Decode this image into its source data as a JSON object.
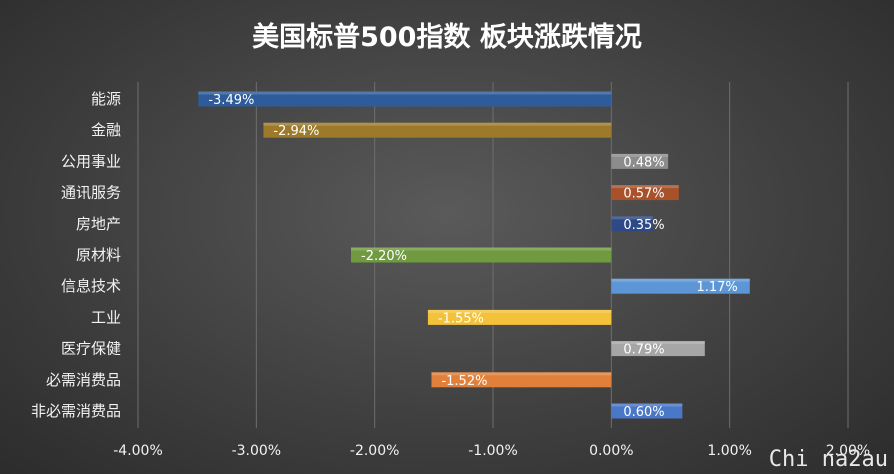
{
  "chart_data": {
    "type": "bar",
    "orientation": "horizontal",
    "title": "美国标普500指数 板块涨跌情况",
    "categories": [
      "能源",
      "金融",
      "公用事业",
      "通讯服务",
      "房地产",
      "原材料",
      "信息技术",
      "工业",
      "医疗保健",
      "必需消费品",
      "非必需消费品"
    ],
    "values": [
      -3.49,
      -2.94,
      0.48,
      0.57,
      0.35,
      -2.2,
      1.17,
      -1.55,
      0.79,
      -1.52,
      0.6
    ],
    "data_labels": [
      "-3.49%",
      "-2.94%",
      "0.48%",
      "0.57%",
      "0.35%",
      "-2.20%",
      "1.17%",
      "-1.55%",
      "0.79%",
      "-1.52%",
      "0.60%"
    ],
    "colors": [
      "#2e5b9a",
      "#9c7a2a",
      "#8c8c8c",
      "#a9522a",
      "#2d4a86",
      "#6f9a3f",
      "#5c96d6",
      "#f3c23a",
      "#a6a6a6",
      "#e0803a",
      "#4a78c8"
    ],
    "xlim": [
      -4.0,
      2.0
    ],
    "xticks": [
      -4,
      -3,
      -2,
      -1,
      0,
      1,
      2
    ],
    "xtick_labels": [
      "-4.00%",
      "-3.00%",
      "-2.00%",
      "-1.00%",
      "0.00%",
      "1.00%",
      "2.00%"
    ],
    "grid": true,
    "xlabel": "",
    "ylabel": ""
  },
  "watermark": "Chi na2au"
}
